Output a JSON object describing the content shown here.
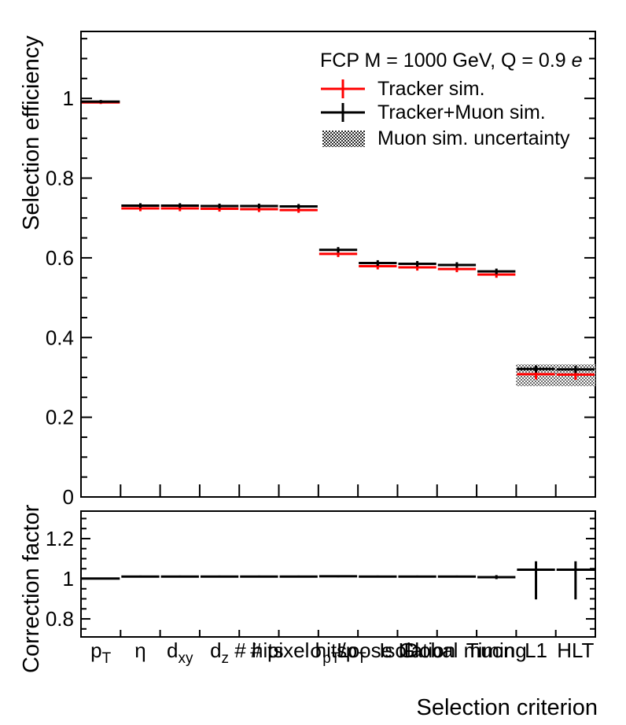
{
  "legend": {
    "header_main": "FCP M = 1000 GeV, Q = 0.9 ",
    "header_charge": "e",
    "items": [
      {
        "label": "Tracker sim.",
        "marker": "red-errorbar-line"
      },
      {
        "label": "Tracker+Muon sim.",
        "marker": "black-errorbar-line"
      },
      {
        "label": "Muon sim. uncertainty",
        "marker": "dotted-hatch-box"
      }
    ]
  },
  "colors": {
    "tracker_sim": "#ff0000",
    "tracker_muon_sim": "#000000",
    "frame": "#000000",
    "band_dots": "#000000"
  },
  "chart_data": [
    {
      "type": "line",
      "style": "ROOT histogram: per-bin horizontal segment with central error bar",
      "title": "",
      "ylabel": "Selection efficiency",
      "ylim": [
        0,
        1.168
      ],
      "yticks": [
        0,
        0.2,
        0.4,
        0.6,
        0.8,
        1
      ],
      "ytick_labels": [
        "0",
        "0.2",
        "0.4",
        "0.6",
        "0.8",
        "1"
      ],
      "minor_tick_step": 0.05,
      "grid": false,
      "legend_position": "top-right-inside",
      "categories": [
        "p_T",
        "η",
        "d_xy",
        "d_z",
        "# hits",
        "# pixel hits",
        "σ_p_T/p_T",
        "Loose ID",
        "Isolation",
        "Global muon",
        "Timing",
        "L1",
        "HLT"
      ],
      "series": [
        {
          "name": "Tracker sim.",
          "color": "#ff0000",
          "values": [
            0.99,
            0.724,
            0.724,
            0.723,
            0.722,
            0.72,
            0.61,
            0.579,
            0.576,
            0.572,
            0.558,
            0.308,
            0.307
          ],
          "errors": [
            0.004,
            0.007,
            0.007,
            0.007,
            0.007,
            0.007,
            0.008,
            0.008,
            0.008,
            0.008,
            0.008,
            0.013,
            0.013
          ]
        },
        {
          "name": "Tracker+Muon sim.",
          "color": "#000000",
          "values": [
            0.992,
            0.731,
            0.731,
            0.73,
            0.73,
            0.729,
            0.62,
            0.587,
            0.585,
            0.582,
            0.566,
            0.321,
            0.32
          ],
          "errors": [
            0.004,
            0.006,
            0.006,
            0.006,
            0.006,
            0.006,
            0.007,
            0.007,
            0.007,
            0.007,
            0.007,
            0.009,
            0.009
          ]
        }
      ],
      "uncertainty_band": {
        "label": "Muon sim. uncertainty",
        "first_bin": 12,
        "last_bin": 13,
        "y_low": 0.278,
        "y_high": 0.333
      }
    },
    {
      "type": "line",
      "style": "ROOT histogram: per-bin horizontal segment with central error bar",
      "ylabel": "Correction factor",
      "xlabel": "Selection criterion",
      "ylim": [
        0.71,
        1.337
      ],
      "yticks": [
        0.8,
        1,
        1.2
      ],
      "ytick_labels": [
        "0.8",
        "1",
        "1.2"
      ],
      "minor_tick_step": 0.05,
      "grid": false,
      "categories": [
        "p_T",
        "η",
        "d_xy",
        "d_z",
        "# hits",
        "# pixel hits",
        "σ_p_T/p_T",
        "Loose ID",
        "Isolation",
        "Global muon",
        "Timing",
        "L1",
        "HLT"
      ],
      "values": [
        1.001,
        1.011,
        1.011,
        1.011,
        1.011,
        1.011,
        1.012,
        1.011,
        1.011,
        1.011,
        1.008,
        1.045,
        1.045
      ],
      "err_up": [
        0.004,
        0.005,
        0.005,
        0.005,
        0.005,
        0.005,
        0.005,
        0.005,
        0.005,
        0.005,
        0.01,
        0.042,
        0.042
      ],
      "err_down": [
        0.004,
        0.005,
        0.005,
        0.005,
        0.005,
        0.005,
        0.005,
        0.005,
        0.005,
        0.005,
        0.01,
        0.148,
        0.148
      ]
    }
  ],
  "bin_label_segments": [
    [
      {
        "t": "p"
      },
      {
        "t": "T",
        "s": 1
      }
    ],
    [
      {
        "t": "η"
      }
    ],
    [
      {
        "t": "d"
      },
      {
        "t": "xy",
        "s": 1
      }
    ],
    [
      {
        "t": "d"
      },
      {
        "t": "z",
        "s": 1
      }
    ],
    [
      {
        "t": "# hits"
      }
    ],
    [
      {
        "t": "# pixel hits"
      }
    ],
    [
      {
        "t": "σ"
      },
      {
        "t": "p",
        "s": 1
      },
      {
        "t": "T",
        "s": 1
      },
      {
        "t": "/p"
      },
      {
        "t": "T",
        "s": 1
      }
    ],
    [
      {
        "t": "Loose ID"
      }
    ],
    [
      {
        "t": "Isolation"
      }
    ],
    [
      {
        "t": "Global muon"
      }
    ],
    [
      {
        "t": "Timing"
      }
    ],
    [
      {
        "t": "L1"
      }
    ],
    [
      {
        "t": "HLT"
      }
    ]
  ]
}
